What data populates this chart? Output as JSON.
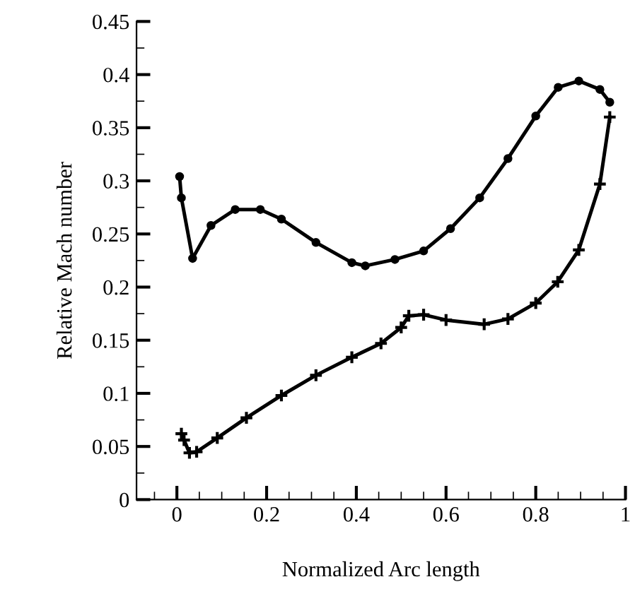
{
  "chart_data": {
    "type": "line",
    "xlabel": "Normalized Arc length",
    "ylabel": "Relative Mach number",
    "xlim": [
      -0.09,
      1.0
    ],
    "xticks": [
      {
        "value": 0,
        "label": "0"
      },
      {
        "value": 0.2,
        "label": "0.2"
      },
      {
        "value": 0.4,
        "label": "0.4"
      },
      {
        "value": 0.6,
        "label": "0.6"
      },
      {
        "value": 0.8,
        "label": "0.8"
      },
      {
        "value": 1,
        "label": "1"
      }
    ],
    "ylim": [
      0,
      0.45
    ],
    "yticks": [
      {
        "value": 0,
        "label": "0"
      },
      {
        "value": 0.05,
        "label": "0.05"
      },
      {
        "value": 0.1,
        "label": "0.1"
      },
      {
        "value": 0.15,
        "label": "0.15"
      },
      {
        "value": 0.2,
        "label": "0.2"
      },
      {
        "value": 0.25,
        "label": "0.25"
      },
      {
        "value": 0.3,
        "label": "0.3"
      },
      {
        "value": 0.35,
        "label": "0.35"
      },
      {
        "value": 0.4,
        "label": "0.4"
      },
      {
        "value": 0.45,
        "label": "0.45"
      }
    ],
    "grid": false,
    "legend": false,
    "series": [
      {
        "color": "#000000",
        "marker": "circle",
        "x": [
          0.006,
          0.01,
          0.035,
          0.076,
          0.13,
          0.186,
          0.233,
          0.31,
          0.39,
          0.42,
          0.486,
          0.55,
          0.61,
          0.675,
          0.738,
          0.8,
          0.85,
          0.896,
          0.943,
          0.965
        ],
        "values": [
          0.304,
          0.284,
          0.227,
          0.258,
          0.273,
          0.273,
          0.264,
          0.242,
          0.223,
          0.22,
          0.226,
          0.234,
          0.255,
          0.284,
          0.321,
          0.361,
          0.388,
          0.394,
          0.386,
          0.374
        ]
      },
      {
        "color": "#000000",
        "marker": "cross",
        "x": [
          0.01,
          0.016,
          0.028,
          0.044,
          0.09,
          0.155,
          0.233,
          0.31,
          0.39,
          0.455,
          0.5,
          0.517,
          0.55,
          0.6,
          0.685,
          0.738,
          0.8,
          0.849,
          0.896,
          0.943,
          0.965
        ],
        "values": [
          0.062,
          0.056,
          0.044,
          0.045,
          0.058,
          0.077,
          0.098,
          0.117,
          0.134,
          0.147,
          0.162,
          0.173,
          0.174,
          0.169,
          0.165,
          0.17,
          0.185,
          0.205,
          0.235,
          0.297,
          0.36
        ]
      }
    ]
  }
}
